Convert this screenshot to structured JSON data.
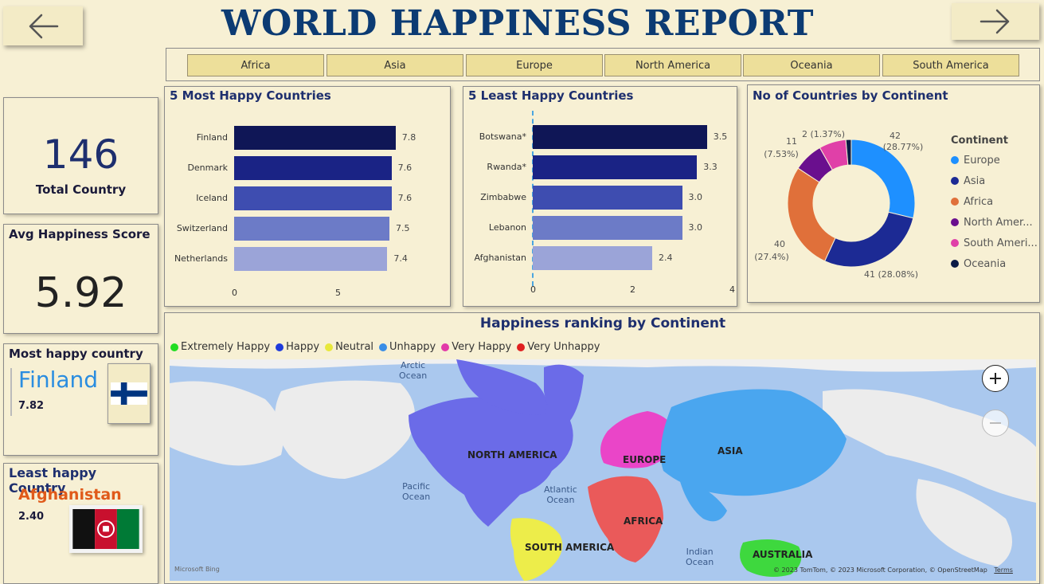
{
  "header": {
    "title": "WORLD HAPPINESS REPORT"
  },
  "nav": {
    "back_icon": "arrow-left-icon",
    "forward_icon": "arrow-right-icon"
  },
  "slicer": {
    "items": [
      "Africa",
      "Asia",
      "Europe",
      "North America",
      "Oceania",
      "South America"
    ]
  },
  "kpis": {
    "total_country_value": "146",
    "total_country_label": "Total Country",
    "avg_score_label": "Avg Happiness Score",
    "avg_score_value": "5.92",
    "most_happy_label": "Most happy country",
    "most_happy_country": "Finland",
    "most_happy_score": "7.82",
    "least_happy_label": "Least happy Country",
    "least_happy_country": "Afghanistan",
    "least_happy_score": "2.40"
  },
  "chart_data": [
    {
      "type": "bar",
      "orientation": "horizontal",
      "title": "5 Most Happy Countries",
      "categories": [
        "Finland",
        "Denmark",
        "Iceland",
        "Switzerland",
        "Netherlands"
      ],
      "values": [
        7.8,
        7.6,
        7.6,
        7.5,
        7.4
      ],
      "value_labels": [
        "7.8",
        "7.6",
        "7.6",
        "7.5",
        "7.4"
      ],
      "xlim": [
        0,
        9
      ],
      "x_ticks": [
        "0",
        "5"
      ],
      "colors": [
        "#0f1656",
        "#1a2385",
        "#3e4db0",
        "#6c7bc7",
        "#9ba4d8"
      ]
    },
    {
      "type": "bar",
      "orientation": "horizontal",
      "title": "5 Least Happy Countries",
      "categories": [
        "Botswana*",
        "Rwanda*",
        "Zimbabwe",
        "Lebanon",
        "Afghanistan"
      ],
      "values": [
        3.5,
        3.3,
        3.0,
        3.0,
        2.4
      ],
      "value_labels": [
        "3.5",
        "3.3",
        "3.0",
        "3.0",
        "2.4"
      ],
      "xlim": [
        0,
        4
      ],
      "x_ticks": [
        "0",
        "2",
        "4"
      ],
      "colors": [
        "#0f1656",
        "#1a2385",
        "#3e4db0",
        "#6c7bc7",
        "#9ba4d8"
      ]
    },
    {
      "type": "pie",
      "donut": true,
      "title": "No of Countries by Continent",
      "legend_title": "Continent",
      "legend_position": "right",
      "slices": [
        {
          "name": "Europe",
          "value": 42,
          "label": "42",
          "pct": "(28.77%)",
          "color": "#1e90ff"
        },
        {
          "name": "Asia",
          "value": 41,
          "label": "41 (28.08%)",
          "pct": "",
          "color": "#1c2a94"
        },
        {
          "name": "Africa",
          "value": 40,
          "label": "40",
          "pct": "(27.4%)",
          "color": "#e0703a"
        },
        {
          "name": "North America",
          "value": 11,
          "label": "11",
          "pct": "(7.53%)",
          "color": "#6a0f8e"
        },
        {
          "name": "South America",
          "value": 10,
          "label": "",
          "pct": "",
          "color": "#e040a8"
        },
        {
          "name": "Oceania",
          "value": 2,
          "label": "2 (1.37%)",
          "pct": "",
          "color": "#0b1a45"
        }
      ],
      "legend_labels": [
        "Europe",
        "Asia",
        "Africa",
        "North Amer...",
        "South Ameri...",
        "Oceania"
      ]
    }
  ],
  "map": {
    "title": "Happiness ranking by Continent",
    "legend": [
      {
        "label": "Extremely Happy",
        "color": "#22dd22"
      },
      {
        "label": "Happy",
        "color": "#1f3bdb"
      },
      {
        "label": "Neutral",
        "color": "#e8e83a"
      },
      {
        "label": "Unhappy",
        "color": "#3a8ee6"
      },
      {
        "label": "Very Happy",
        "color": "#e23aa8"
      },
      {
        "label": "Very Unhappy",
        "color": "#e02020"
      }
    ],
    "ocean_labels": {
      "arctic": "Arctic\nOcean",
      "pacific": "Pacific\nOcean",
      "atlantic": "Atlantic\nOcean",
      "indian": "Indian\nOcean"
    },
    "continent_labels": {
      "north_america": "NORTH AMERICA",
      "europe": "EUROPE",
      "asia": "ASIA",
      "africa": "AFRICA",
      "south_america": "SOUTH AMERICA",
      "australia": "AUSTRALIA"
    },
    "zoom_in_icon": "plus-icon",
    "zoom_out_icon": "minus-icon",
    "attribution": "© 2023 TomTom, © 2023 Microsoft Corporation, © OpenStreetMap",
    "terms": "Terms",
    "bing": "Microsoft Bing"
  }
}
